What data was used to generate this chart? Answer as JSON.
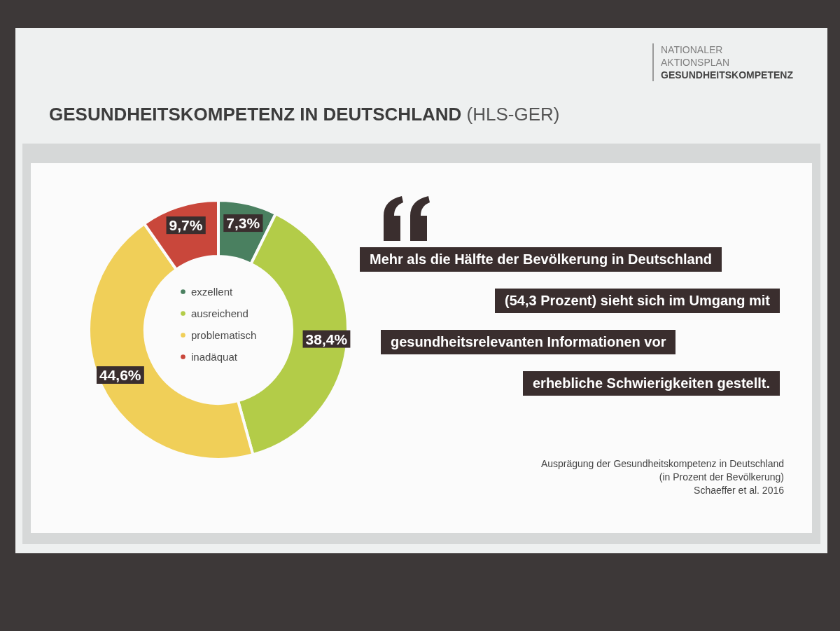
{
  "chart_data": {
    "type": "donut",
    "title": "GESUNDHEITSKOMPETENZ IN DEUTSCHLAND (HLS-GER)",
    "categories": [
      "exzellent",
      "ausreichend",
      "problematisch",
      "inadäquat"
    ],
    "values": [
      7.3,
      38.4,
      44.6,
      9.7
    ],
    "colors": [
      "#4a8060",
      "#b3cc48",
      "#f0cf58",
      "#c9473b"
    ],
    "value_labels": [
      "7,3%",
      "38,4%",
      "44,6%",
      "9,7%"
    ],
    "legend": "center",
    "annotations": [
      "NATIONALER AKTIONSPLAN GESUNDHEITSKOMPETENZ",
      "Mehr als die Hälfte der Bevölkerung in Deutschland",
      "(54,3 Prozent) sieht sich im Umgang mit",
      "gesundheitsrelevanten Informationen vor",
      "erhebliche Schwierigkeiten gestellt.",
      "Ausprägung der Gesundheitskompetenz in Deutschland",
      "(in Prozent der Bevölkerung)",
      "Schaeffer et al. 2016"
    ]
  }
}
